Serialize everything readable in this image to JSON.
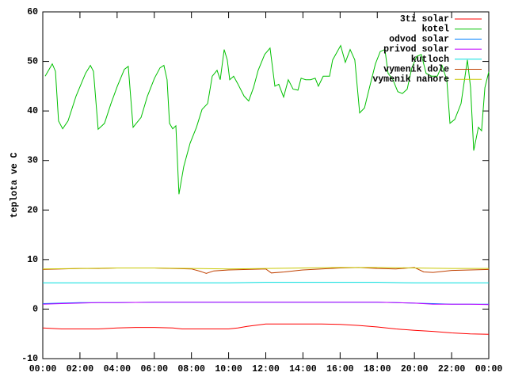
{
  "chart_data": {
    "type": "line",
    "ylabel": "teplota ve C",
    "ylim": [
      -10,
      60
    ],
    "yticks": [
      -10,
      0,
      10,
      20,
      30,
      40,
      50,
      60
    ],
    "xlim": [
      0,
      24
    ],
    "xticks": [
      {
        "value": 0,
        "label": "00:00"
      },
      {
        "value": 2,
        "label": "02:00"
      },
      {
        "value": 4,
        "label": "04:00"
      },
      {
        "value": 6,
        "label": "06:00"
      },
      {
        "value": 8,
        "label": "08:00"
      },
      {
        "value": 10,
        "label": "10:00"
      },
      {
        "value": 12,
        "label": "12:00"
      },
      {
        "value": 14,
        "label": "14:00"
      },
      {
        "value": 16,
        "label": "16:00"
      },
      {
        "value": 18,
        "label": "18:00"
      },
      {
        "value": 20,
        "label": "20:00"
      },
      {
        "value": 22,
        "label": "22:00"
      },
      {
        "value": 24,
        "label": "00:00"
      }
    ],
    "legend": "top-right",
    "series": [
      {
        "name": "3ti solar",
        "color": "#ff0000",
        "x": [
          0,
          1,
          2,
          3,
          4,
          5,
          6,
          7,
          7.5,
          8,
          9,
          10,
          10.5,
          11,
          12,
          13,
          14,
          15,
          16,
          17,
          18,
          19,
          20,
          21,
          22,
          23,
          24
        ],
        "values": [
          -3.8,
          -4,
          -4,
          -4,
          -3.8,
          -3.7,
          -3.7,
          -3.8,
          -4,
          -4,
          -4,
          -4,
          -3.8,
          -3.5,
          -3,
          -3,
          -3,
          -3,
          -3.1,
          -3.3,
          -3.6,
          -4,
          -4.3,
          -4.5,
          -4.8,
          -5,
          -5.1
        ]
      },
      {
        "name": "kotel",
        "color": "#00c000",
        "x": [
          0.13,
          0.51,
          0.68,
          0.85,
          1.07,
          1.36,
          1.79,
          2.3,
          2.56,
          2.73,
          2.98,
          3.32,
          3.67,
          4.01,
          4.39,
          4.6,
          4.86,
          5.29,
          5.63,
          6.01,
          6.31,
          6.52,
          6.69,
          6.82,
          6.99,
          7.16,
          7.33,
          7.59,
          7.93,
          8.27,
          8.57,
          8.87,
          9.12,
          9.38,
          9.55,
          9.76,
          9.93,
          10.06,
          10.27,
          10.49,
          10.83,
          11.08,
          11.34,
          11.59,
          11.94,
          12.23,
          12.49,
          12.7,
          12.96,
          13.21,
          13.47,
          13.73,
          13.9,
          14.15,
          14.41,
          14.66,
          14.83,
          15.09,
          15.43,
          15.6,
          16.03,
          16.28,
          16.54,
          16.79,
          17.05,
          17.31,
          17.56,
          17.9,
          18.16,
          18.41,
          18.58,
          18.84,
          19.1,
          19.35,
          19.61,
          19.86,
          20.12,
          20.37,
          20.63,
          20.93,
          21.23,
          21.48,
          21.74,
          21.91,
          22.17,
          22.51,
          22.85,
          23.02,
          23.19,
          23.44,
          23.61,
          23.79,
          24
        ],
        "values": [
          47,
          49.5,
          48,
          38,
          36.4,
          38,
          43,
          47.6,
          49.2,
          48,
          36.3,
          37.5,
          41.5,
          45,
          48.4,
          49,
          36.7,
          38.7,
          43,
          46.6,
          48.7,
          49.2,
          46.3,
          37.5,
          36.4,
          37,
          23.2,
          28.8,
          33.5,
          36.7,
          40.3,
          41.5,
          47,
          48.2,
          46.3,
          52.4,
          50.3,
          46.3,
          47,
          45.5,
          43,
          42,
          44.7,
          48.2,
          51.4,
          52.7,
          45,
          45.4,
          42.8,
          46.3,
          44.4,
          44.2,
          46.6,
          46.3,
          46.3,
          46.6,
          45,
          47,
          47,
          50.3,
          53.2,
          49.8,
          52.4,
          50.3,
          39.6,
          40.6,
          44.4,
          49.5,
          52,
          52.4,
          47.6,
          46.3,
          43.9,
          43.5,
          44.4,
          48.7,
          51,
          51.4,
          47.6,
          47,
          47,
          49.2,
          46.3,
          37.5,
          38.3,
          41.5,
          50.3,
          44.7,
          32,
          36.7,
          36,
          44.7,
          47.9
        ]
      },
      {
        "name": "odvod solar",
        "color": "#0080ff",
        "x": [
          0,
          1,
          2,
          3,
          4,
          6,
          8,
          10,
          12,
          14,
          16,
          18,
          19,
          20,
          21,
          22,
          23,
          24
        ],
        "values": [
          1.1,
          1.2,
          1.3,
          1.3,
          1.3,
          1.4,
          1.4,
          1.4,
          1.4,
          1.4,
          1.4,
          1.4,
          1.3,
          1.2,
          1.1,
          1.0,
          1.0,
          1.0
        ]
      },
      {
        "name": "privod solar",
        "color": "#c000ff",
        "x": [
          0,
          1,
          2,
          3,
          4,
          6,
          8,
          10,
          12,
          14,
          16,
          18,
          19,
          20,
          21,
          22,
          23,
          24
        ],
        "values": [
          1.0,
          1.1,
          1.2,
          1.3,
          1.3,
          1.4,
          1.4,
          1.4,
          1.4,
          1.4,
          1.4,
          1.4,
          1.3,
          1.2,
          1.0,
          1.0,
          1.0,
          0.9
        ]
      },
      {
        "name": "kutloch",
        "color": "#00dddd",
        "x": [
          0,
          2,
          4,
          6,
          8,
          10,
          12,
          14,
          16,
          18,
          20,
          22,
          24
        ],
        "values": [
          5.3,
          5.3,
          5.3,
          5.3,
          5.3,
          5.3,
          5.4,
          5.4,
          5.4,
          5.4,
          5.3,
          5.3,
          5.3
        ]
      },
      {
        "name": "vymenik dole",
        "color": "#c04000",
        "x": [
          0,
          1,
          2,
          3,
          4,
          5,
          6,
          7,
          8,
          8.5,
          8.8,
          9.2,
          10,
          11,
          12,
          12.3,
          13,
          14,
          15,
          16,
          17,
          18,
          19,
          20,
          20.5,
          21,
          22,
          23,
          24
        ],
        "values": [
          8,
          8.1,
          8.2,
          8.2,
          8.3,
          8.3,
          8.3,
          8.2,
          8.1,
          7.6,
          7.2,
          7.7,
          7.9,
          8,
          8.1,
          7.3,
          7.5,
          7.9,
          8.1,
          8.3,
          8.4,
          8.2,
          8.1,
          8.4,
          7.5,
          7.4,
          7.8,
          7.9,
          8
        ]
      },
      {
        "name": "vymenik nahore",
        "color": "#c8c800",
        "x": [
          0,
          2,
          4,
          6,
          8,
          10,
          12,
          14,
          16,
          18,
          20,
          22,
          24
        ],
        "values": [
          8.1,
          8.2,
          8.3,
          8.3,
          8.2,
          8.1,
          8.2,
          8.3,
          8.4,
          8.4,
          8.3,
          8.2,
          8.2
        ]
      }
    ]
  }
}
